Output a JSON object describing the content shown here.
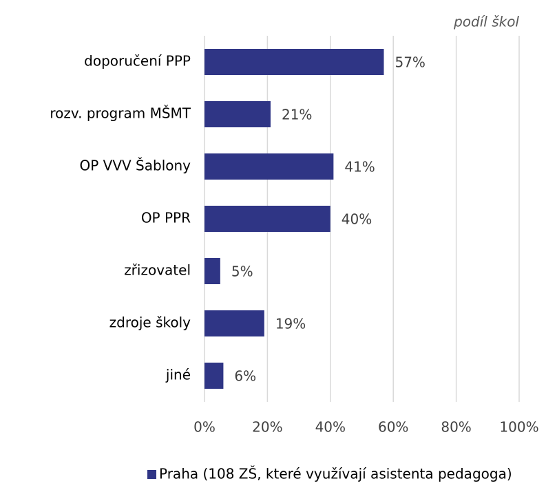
{
  "chart_data": {
    "type": "bar",
    "orientation": "horizontal",
    "x_label": "podíl škol",
    "categories": [
      "doporučení PPP",
      "rozv. program MŠMT",
      "OP VVV Šablony",
      "OP PPR",
      "zřizovatel",
      "zdroje školy",
      "jiné"
    ],
    "series": [
      {
        "name": "Praha (108 ZŠ, které využívají asistenta pedagoga)",
        "color": "#2f3585",
        "values": [
          57,
          21,
          41,
          40,
          5,
          19,
          6
        ],
        "value_labels": [
          "57%",
          "21%",
          "41%",
          "40%",
          "5%",
          "19%",
          "6%"
        ]
      }
    ],
    "xlim": [
      0,
      100
    ],
    "xticks": [
      {
        "value": 0,
        "label": "0%"
      },
      {
        "value": 20,
        "label": "20%"
      },
      {
        "value": 40,
        "label": "40%"
      },
      {
        "value": 60,
        "label": "60%"
      },
      {
        "value": 80,
        "label": "80%"
      },
      {
        "value": 100,
        "label": "100%"
      }
    ],
    "grid": true,
    "legend": "bottom"
  }
}
